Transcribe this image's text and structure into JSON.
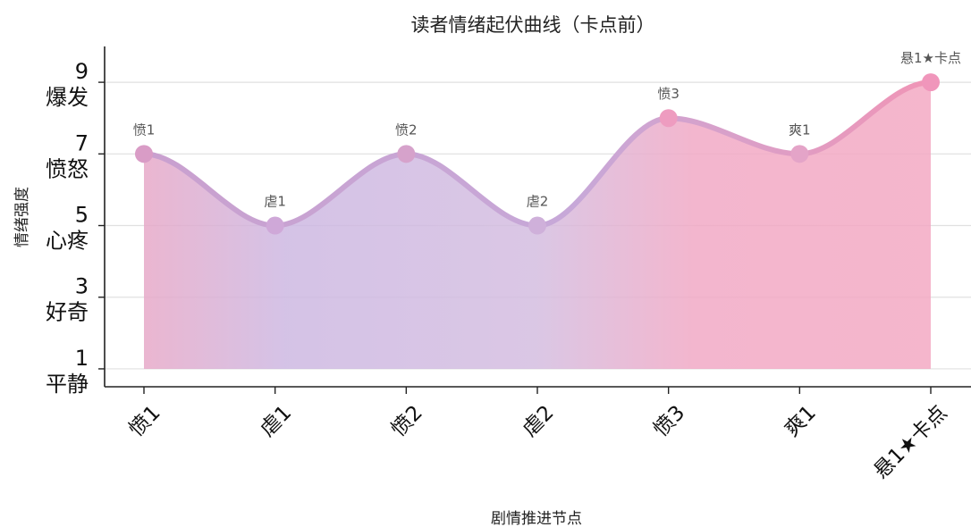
{
  "chart_data": {
    "type": "area",
    "title": "读者情绪起伏曲线（卡点前）",
    "xlabel": "剧情推进节点",
    "ylabel": "情绪强度",
    "categories": [
      "愤1",
      "虐1",
      "愤2",
      "虐2",
      "愤3",
      "爽1",
      "悬1★卡点"
    ],
    "series": [
      {
        "values": [
          7,
          5,
          7,
          5,
          8,
          7,
          9
        ]
      }
    ],
    "point_labels": [
      "愤1",
      "虐1",
      "愤2",
      "虐2",
      "愤3",
      "爽1",
      "悬1★卡点"
    ],
    "ylim": [
      0.5,
      10
    ],
    "yticks": [
      {
        "value": 1,
        "number": "1",
        "label": "平静"
      },
      {
        "value": 3,
        "number": "3",
        "label": "好奇"
      },
      {
        "value": 5,
        "number": "5",
        "label": "心疼"
      },
      {
        "value": 7,
        "number": "7",
        "label": "愤怒"
      },
      {
        "value": 9,
        "number": "9",
        "label": "爆发"
      }
    ],
    "grid": true,
    "colors": {
      "line_start": "#c4a6d8",
      "line_end": "#f09ab8",
      "fill_purple": "#cdb8e2",
      "fill_pink": "#f3a6c2",
      "grid": "#e0e0e0",
      "axis": "#222222",
      "label": "#555555"
    }
  }
}
